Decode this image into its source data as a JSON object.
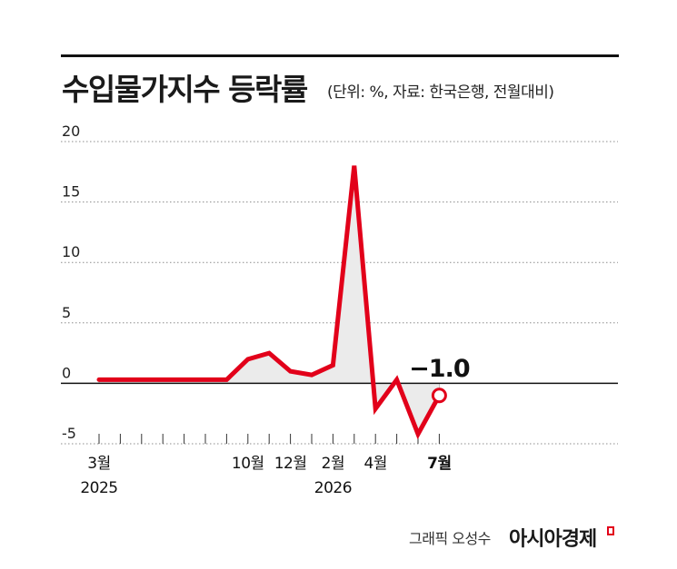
{
  "header": {
    "title": "수입물가지수 등락률",
    "subtitle": "(단위: %, 자료: 한국은행, 전월대비)"
  },
  "footer": {
    "credit": "그래픽 오성수",
    "brand": "아시아경제"
  },
  "colors": {
    "line": "#e2001a",
    "area": "#ebebeb",
    "grid": "#8c8c8c",
    "zero_line": "#111111"
  },
  "chart_data": {
    "type": "line",
    "x": [
      "2025-03",
      "2025-04",
      "2025-05",
      "2025-06",
      "2025-07",
      "2025-08",
      "2025-09",
      "2025-10",
      "2025-11",
      "2025-12",
      "2026-01",
      "2026-02",
      "2026-03",
      "2026-04",
      "2026-05",
      "2026-06",
      "2026-07"
    ],
    "values": [
      0.3,
      0.3,
      0.3,
      0.3,
      0.3,
      0.3,
      0.3,
      2.0,
      2.5,
      1.0,
      0.7,
      1.5,
      18.0,
      -2.1,
      0.3,
      -4.2,
      -1.0
    ],
    "y_ticks": [
      "20",
      "15",
      "10",
      "5",
      "0",
      "-5"
    ],
    "ylim": [
      -5,
      20
    ],
    "x_tick_labels": [
      {
        "x": "2025-03",
        "label": "3월",
        "year": "2025"
      },
      {
        "x": "2025-10",
        "label": "10월",
        "year": ""
      },
      {
        "x": "2025-12",
        "label": "12월",
        "year": ""
      },
      {
        "x": "2026-02",
        "label": "2월",
        "year": "2026"
      },
      {
        "x": "2026-04",
        "label": "4월",
        "year": ""
      },
      {
        "x": "2026-07",
        "label": "7월",
        "year": ""
      }
    ],
    "annotation": {
      "x": "2026-07",
      "text": "−1.0"
    },
    "grid": true,
    "legend": "none"
  }
}
